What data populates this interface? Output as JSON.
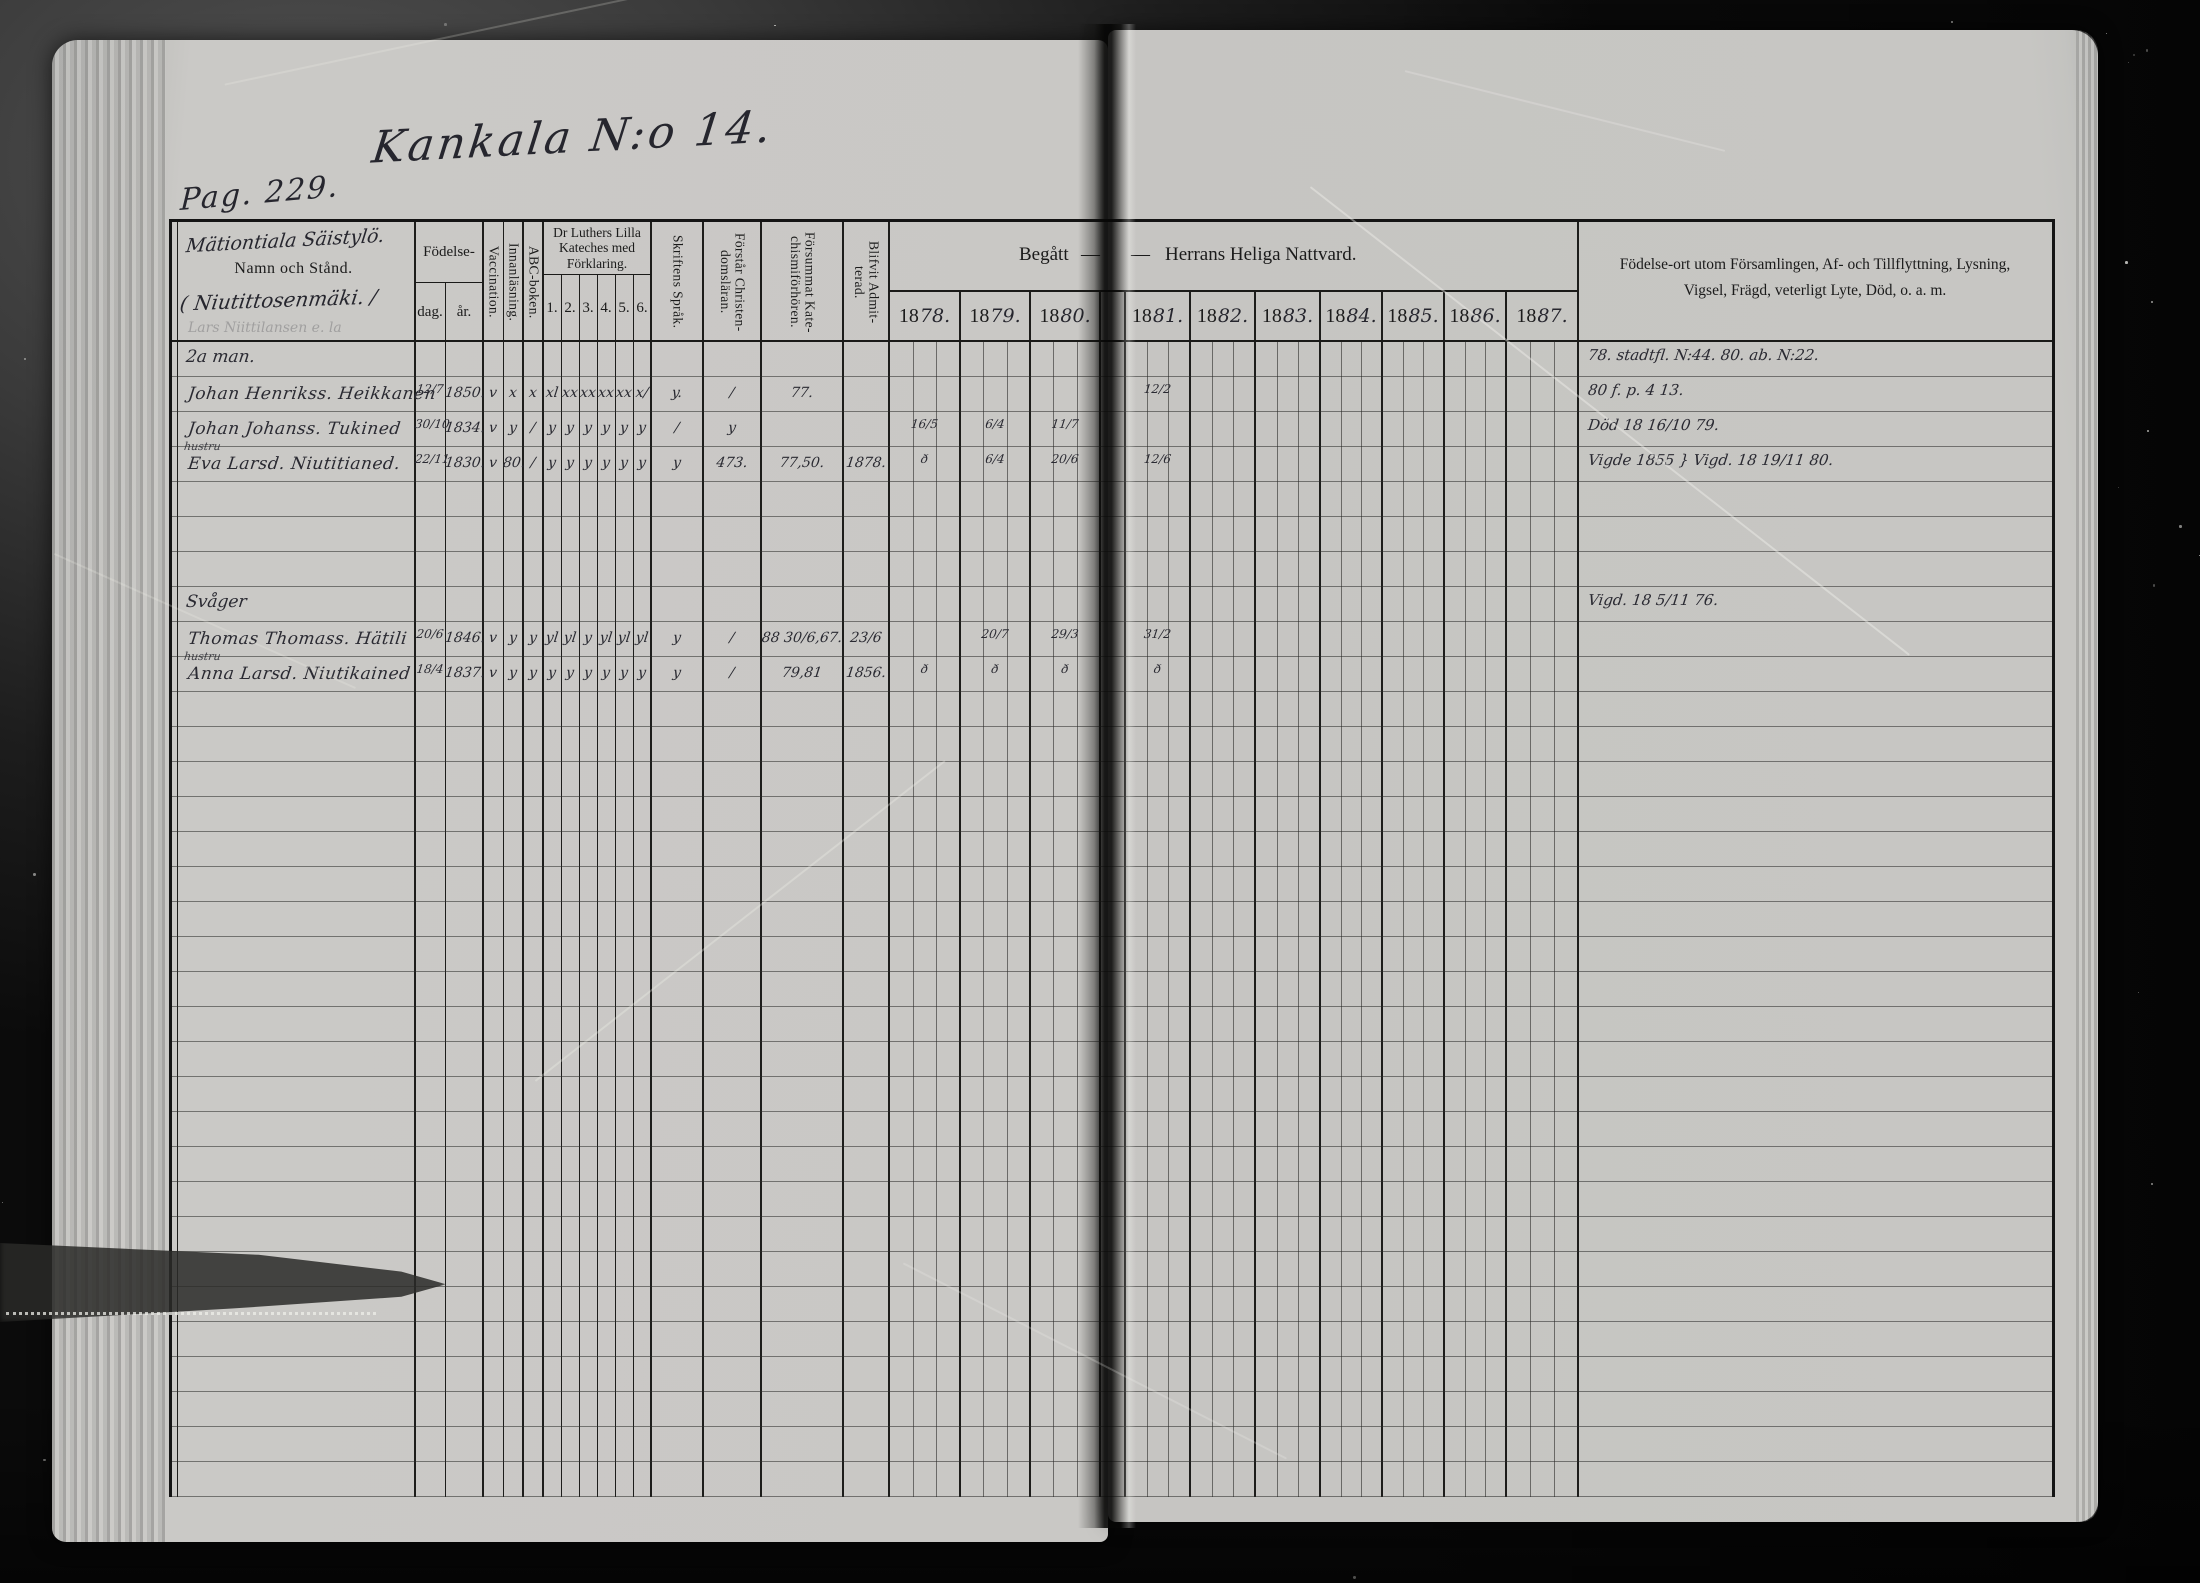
{
  "colors": {
    "background": "#0f0f0f",
    "paper_left": "#c9c8c5",
    "paper_right": "#c6c5c2",
    "printed_ink": "#1b1b1b",
    "handwriting_ink": "#26262e"
  },
  "page": {
    "page_number": "Pag. 229.",
    "title": "Kankala N:o 14."
  },
  "table": {
    "header": {
      "name": {
        "hw_top": "Mätiontiala Säistylö.",
        "printed": "Namn och Stånd.",
        "hw_bottom": "( Niutittosenmäki. /",
        "faint_note": "Lars Niittilansen e. la"
      },
      "fodelse": {
        "label": "Födelse-",
        "dag": "dag.",
        "ar": "år."
      },
      "vacc": "Vaccination.",
      "innan": "Innanläsning.",
      "abc": "ABC-boken.",
      "katekes": {
        "label": "Dr Luthers Lilla Kateches med Förklaring.",
        "subs": [
          "1.",
          "2.",
          "3.",
          "4.",
          "5.",
          "6."
        ]
      },
      "skrift": "Skriftens Språk.",
      "forstar": "Förstår Christen- domsläran.",
      "forsummat": "Försummat Kate- chismiförhören.",
      "blifvit": "Blifvit Admit- terad.",
      "begatt": {
        "left": "Begått",
        "dash1": "—",
        "dash2": "—",
        "right": "Herrans Heliga Nattvard."
      },
      "years": [
        {
          "prefix": "18",
          "suffix": "78."
        },
        {
          "prefix": "18",
          "suffix": "79."
        },
        {
          "prefix": "18",
          "suffix": "80."
        },
        {
          "prefix": "18",
          "suffix": "81."
        },
        {
          "prefix": "18",
          "suffix": "82."
        },
        {
          "prefix": "18",
          "suffix": "83."
        },
        {
          "prefix": "18",
          "suffix": "84."
        },
        {
          "prefix": "18",
          "suffix": "85."
        },
        {
          "prefix": "18",
          "suffix": "86."
        },
        {
          "prefix": "18",
          "suffix": "87."
        }
      ],
      "annotation_line1": "Födelse-ort utom Församlingen, Af- och Tillflyttning, Lysning,",
      "annotation_line2": "Vigsel, Frägd, veterligt Lyte, Död, o. a. m."
    },
    "body": {
      "row_count": 33,
      "entries": [
        {
          "row": 0,
          "cells": {
            "name_label": "2a man."
          },
          "annot": "78. stadtfl. N:44.  80. ab. N:22."
        },
        {
          "row": 1,
          "cells": {
            "name": "Johan Henrikss. Heikkanen",
            "dag": "12/7",
            "ar": "1850.",
            "vacc": "v",
            "innan": "x",
            "abc": "x",
            "k1": "xl",
            "k2": "xx",
            "k3": "xx",
            "k4": "xx",
            "k5": "xx",
            "k6": "x/",
            "skrift": "y.",
            "forstar": "/",
            "forsummat": "77.",
            "y1881": "12/2"
          },
          "annot": "80 f. p. 4 13."
        },
        {
          "row": 2,
          "cells": {
            "name": "Johan Johanss. Tukined",
            "dag": "30/10",
            "ar": "1834.",
            "vacc": "v",
            "innan": "y",
            "abc": "/",
            "k1": "y",
            "k2": "y",
            "k3": "y",
            "k4": "y",
            "k5": "y",
            "k6": "y",
            "skrift": "/",
            "forstar": "y",
            "y1878": "16/5",
            "y1879": "6/4",
            "y1880": "11/7"
          },
          "annot": "Död 18 16/10 79."
        },
        {
          "row": 3,
          "cells": {
            "prefix": "hustru",
            "name": "Eva Larsd. Niutitianed.",
            "dag": "22/11",
            "ar": "1830.",
            "vacc": "v",
            "innan": "80.",
            "abc": "/",
            "k1": "y",
            "k2": "y",
            "k3": "y",
            "k4": "y",
            "k5": "y",
            "k6": "y",
            "skrift": "y",
            "forstar": "473.",
            "forsummat": "77,50.",
            "blifvit": "1878.",
            "y1878": "ð",
            "y1879": "6/4",
            "y1880": "20/6",
            "y1881": "12/6"
          },
          "annot": "Vigde 1855 }   Vigd. 18 19/11 80."
        },
        {
          "row": 7,
          "cells": {
            "name_label": "Svåger"
          },
          "annot": "Vigd. 18 5/11 76."
        },
        {
          "row": 8,
          "cells": {
            "name": "Thomas Thomass. Hätili",
            "dag": "20/6",
            "ar": "1846.",
            "vacc": "v",
            "innan": "y",
            "abc": "y",
            "k1": "yl",
            "k2": "yl",
            "k3": "y",
            "k4": "yl",
            "k5": "yl",
            "k6": "yl",
            "skrift": "y",
            "forstar": "/",
            "forsummat": "88  30/6,67.",
            "blifvit": "23/6",
            "y1879": "20/7",
            "y1880": "29/3",
            "y1881": "31/2"
          }
        },
        {
          "row": 9,
          "cells": {
            "prefix": "hustru",
            "name": "Anna Larsd. Niutikained",
            "dag": "18/4",
            "ar": "1837.",
            "vacc": "v",
            "innan": "y",
            "abc": "y",
            "k1": "y",
            "k2": "y",
            "k3": "y",
            "k4": "y",
            "k5": "y",
            "k6": "y",
            "skrift": "y",
            "forstar": "/",
            "forsummat": "79,81",
            "blifvit": "1856.",
            "y1878": "ð",
            "y1879": "ð",
            "y1880": "ð",
            "y1881": "ð"
          }
        }
      ]
    }
  }
}
